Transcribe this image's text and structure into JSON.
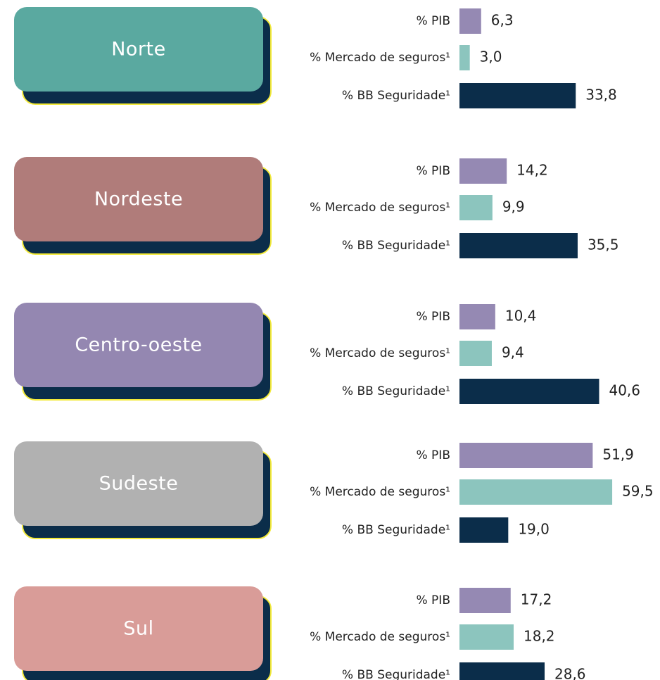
{
  "chart_data": [
    {
      "type": "bar",
      "title": "Norte",
      "color": "#5aa9a0",
      "categories": [
        "% PIB",
        "% Mercado de seguros¹",
        "% BB Seguridade¹"
      ],
      "values": [
        6.3,
        3.0,
        33.8
      ],
      "value_labels": [
        "6,3",
        "3,0",
        "33,8"
      ],
      "colors": [
        "#9589b3",
        "#8cc5be",
        "#0b2d4a"
      ],
      "xlim": [
        0,
        45
      ]
    },
    {
      "type": "bar",
      "title": "Nordeste",
      "color": "#b07c7a",
      "categories": [
        "% PIB",
        "% Mercado de seguros¹",
        "% BB Seguridade¹"
      ],
      "values": [
        14.2,
        9.9,
        35.5
      ],
      "value_labels": [
        "14,2",
        "9,9",
        "35,5"
      ],
      "colors": [
        "#9589b3",
        "#8cc5be",
        "#0b2d4a"
      ],
      "xlim": [
        0,
        46.5
      ]
    },
    {
      "type": "bar",
      "title": "Centro-oeste",
      "color": "#9487b1",
      "categories": [
        "% PIB",
        "% Mercado de seguros¹",
        "% BB Seguridade¹"
      ],
      "values": [
        10.4,
        9.4,
        40.6
      ],
      "value_labels": [
        "10,4",
        "9,4",
        "40,6"
      ],
      "colors": [
        "#9589b3",
        "#8cc5be",
        "#0b2d4a"
      ],
      "xlim": [
        0,
        45
      ]
    },
    {
      "type": "bar",
      "title": "Sudeste",
      "color": "#b1b1b1",
      "categories": [
        "% PIB",
        "% Mercado de seguros¹",
        "% BB Seguridade¹"
      ],
      "values": [
        51.9,
        59.5,
        19.0
      ],
      "value_labels": [
        "51,9",
        "59,5",
        "19,0"
      ],
      "colors": [
        "#9589b3",
        "#8cc5be",
        "#0b2d4a"
      ],
      "xlim": [
        0,
        60.3
      ]
    },
    {
      "type": "bar",
      "title": "Sul",
      "color": "#d99c98",
      "categories": [
        "% PIB",
        "% Mercado de seguros¹",
        "% BB Seguridade¹"
      ],
      "values": [
        17.2,
        18.2,
        28.6
      ],
      "value_labels": [
        "17,2",
        "18,2",
        "28,6"
      ],
      "colors": [
        "#9589b3",
        "#8cc5be",
        "#0b2d4a"
      ],
      "xlim": [
        0,
        52
      ]
    }
  ]
}
